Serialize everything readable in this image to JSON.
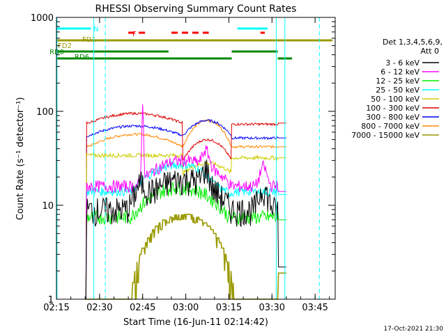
{
  "chart_data": {
    "type": "line",
    "title": "RHESSI Observing Summary Count Rates",
    "xlabel": "Start Time (16-Jun-11 02:14:42)",
    "ylabel": "Count Rate (s⁻¹ detector⁻¹)",
    "y_scale": "log",
    "ylim": [
      1,
      1000
    ],
    "xlim": [
      "02:15",
      "03:52"
    ],
    "x_tick_labels": [
      "02:15",
      "02:30",
      "02:45",
      "03:00",
      "03:15",
      "03:30",
      "03:45"
    ],
    "y_tick_labels": [
      "1",
      "10",
      "100",
      "1000"
    ],
    "legend": {
      "header_line1": "Det 1,3,4,5,6,9,",
      "header_line2": "Att 0",
      "placement": "right"
    },
    "series": [
      {
        "name": "3 - 6 keV",
        "color": "#000000"
      },
      {
        "name": "6 - 12 keV",
        "color": "#ff00ff"
      },
      {
        "name": "12 - 25 keV",
        "color": "#00ee00"
      },
      {
        "name": "25 - 50 keV",
        "color": "#00ffff"
      },
      {
        "name": "50 - 100 keV",
        "color": "#cccc00"
      },
      {
        "name": "100 - 300 keV",
        "color": "#dd0000"
      },
      {
        "name": "300 - 800 keV",
        "color": "#0000ff"
      },
      {
        "name": "800 - 7000 keV",
        "color": "#ff8800"
      },
      {
        "name": "7000 - 15000 keV",
        "color": "#999900"
      }
    ],
    "flag_rows": [
      {
        "label": "N",
        "color": "#00ffff"
      },
      {
        "label": "F",
        "color": "#ff0000"
      },
      {
        "label": "FD1",
        "color": "#999900"
      },
      {
        "label": "FD2",
        "color": "#999900"
      },
      {
        "label": "RD0",
        "color": "#008800"
      },
      {
        "label": "RD6",
        "color": "#008800"
      }
    ],
    "timestamp": "17-Oct-2021 21:30"
  }
}
